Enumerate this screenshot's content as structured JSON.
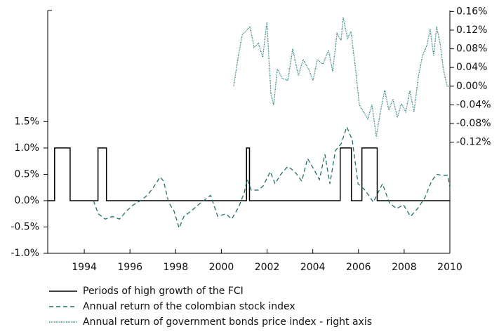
{
  "chart_data": {
    "type": "line",
    "xlim": [
      1992.4,
      2010
    ],
    "xticks": [
      1994,
      1996,
      1998,
      2000,
      2002,
      2004,
      2006,
      2008,
      2010
    ],
    "ylim": [
      -1.0,
      3.61
    ],
    "yticks": [
      {
        "value": -1.0,
        "label": "-1.0%"
      },
      {
        "value": -0.5,
        "label": "-0.5%"
      },
      {
        "value": 0.0,
        "label": "0.0%"
      },
      {
        "value": 0.5,
        "label": "0.5%"
      },
      {
        "value": 1.0,
        "label": "1.0%"
      },
      {
        "value": 1.5,
        "label": "1.5%"
      }
    ],
    "y2lim": [
      -0.358,
      0.162
    ],
    "y2ticks": [
      {
        "value": -0.12,
        "label": "-0.12%"
      },
      {
        "value": -0.08,
        "label": "-0.08%"
      },
      {
        "value": -0.04,
        "label": "-0.04%"
      },
      {
        "value": 0.0,
        "label": "0.00%"
      },
      {
        "value": 0.04,
        "label": "0.04%"
      },
      {
        "value": 0.08,
        "label": "0.08%"
      },
      {
        "value": 0.12,
        "label": "0.12%"
      },
      {
        "value": 0.16,
        "label": "0.16%"
      }
    ],
    "series": [
      {
        "name": "Periods of high growth of the FCI",
        "color": "#000000",
        "style": "solid",
        "x": [
          1992.4,
          1992.7,
          1992.7,
          1993.38,
          1993.38,
          1994.6,
          1994.6,
          1994.97,
          1994.97,
          2001.1,
          2001.1,
          2001.23,
          2001.23,
          2005.2,
          2005.2,
          2005.69,
          2005.69,
          2006.15,
          2006.15,
          2006.82,
          2006.82,
          2010
        ],
        "values": [
          0,
          0,
          1,
          1,
          0,
          0,
          1,
          1,
          0,
          0,
          1,
          1,
          0,
          0,
          1,
          1,
          0,
          0,
          1,
          1,
          0,
          0
        ]
      },
      {
        "name": "Annual return of the colombian stock index",
        "color": "#1f6e6e",
        "style": "dashed",
        "x": [
          1994.4,
          1994.61,
          1994.92,
          1995.23,
          1995.54,
          1995.84,
          1996.15,
          1996.46,
          1996.76,
          1997.07,
          1997.32,
          1997.47,
          1997.69,
          1997.93,
          1998.15,
          1998.36,
          1998.67,
          1999.07,
          1999.53,
          1999.84,
          2000.2,
          2000.45,
          2000.76,
          2001.0,
          2001.13,
          2001.31,
          2001.62,
          2001.83,
          2002.14,
          2002.35,
          2002.6,
          2002.91,
          2003.21,
          2003.52,
          2003.77,
          2004.04,
          2004.29,
          2004.53,
          2004.75,
          2004.99,
          2005.24,
          2005.49,
          2005.73,
          2005.98,
          2006.29,
          2006.65,
          2007.05,
          2007.36,
          2007.67,
          2007.97,
          2008.28,
          2008.59,
          2008.9,
          2009.2,
          2009.42,
          2009.66,
          2009.91,
          2010.0
        ],
        "values": [
          0,
          -0.25,
          -0.35,
          -0.3,
          -0.35,
          -0.2,
          -0.08,
          0.0,
          0.1,
          0.28,
          0.45,
          0.37,
          -0.03,
          -0.2,
          -0.52,
          -0.3,
          -0.2,
          -0.05,
          0.1,
          -0.3,
          -0.25,
          -0.35,
          -0.12,
          0.15,
          0.4,
          0.2,
          0.2,
          0.28,
          0.55,
          0.32,
          0.5,
          0.65,
          0.55,
          0.37,
          0.8,
          0.6,
          0.4,
          0.88,
          0.32,
          0.95,
          1.08,
          1.4,
          1.15,
          0.32,
          0.2,
          -0.03,
          0.32,
          -0.05,
          -0.15,
          -0.08,
          -0.3,
          -0.15,
          0.05,
          0.37,
          0.5,
          0.48,
          0.48,
          0.24
        ]
      },
      {
        "name": "Annual return of government bonds price index - right axis",
        "color": "#2a7d7d",
        "style": "dotted",
        "axis": "y2",
        "x": [
          2000.54,
          2000.7,
          2000.91,
          2001.06,
          2001.25,
          2001.43,
          2001.62,
          2001.81,
          2001.99,
          2002.17,
          2002.29,
          2002.45,
          2002.66,
          2002.91,
          2003.12,
          2003.37,
          2003.58,
          2003.83,
          2004.01,
          2004.2,
          2004.44,
          2004.69,
          2004.87,
          2005.06,
          2005.24,
          2005.33,
          2005.52,
          2005.67,
          2005.86,
          2006.04,
          2006.22,
          2006.41,
          2006.59,
          2006.78,
          2006.96,
          2007.15,
          2007.33,
          2007.51,
          2007.7,
          2007.88,
          2008.07,
          2008.25,
          2008.43,
          2008.62,
          2008.8,
          2008.99,
          2009.14,
          2009.29,
          2009.42,
          2009.57,
          2009.72,
          2009.88,
          2010.0
        ],
        "values": [
          0.0,
          0.052,
          0.11,
          0.117,
          0.128,
          0.083,
          0.092,
          0.062,
          0.137,
          -0.018,
          -0.04,
          0.038,
          0.017,
          0.012,
          0.08,
          0.023,
          0.057,
          0.035,
          0.012,
          0.057,
          0.047,
          0.077,
          0.032,
          0.113,
          0.098,
          0.147,
          0.102,
          0.117,
          0.042,
          -0.04,
          -0.055,
          -0.07,
          -0.04,
          -0.108,
          -0.055,
          -0.008,
          -0.052,
          -0.028,
          -0.067,
          -0.037,
          -0.055,
          -0.01,
          -0.055,
          0.02,
          0.065,
          0.087,
          0.122,
          0.065,
          0.128,
          0.092,
          0.035,
          0.0,
          0.0
        ]
      }
    ]
  }
}
